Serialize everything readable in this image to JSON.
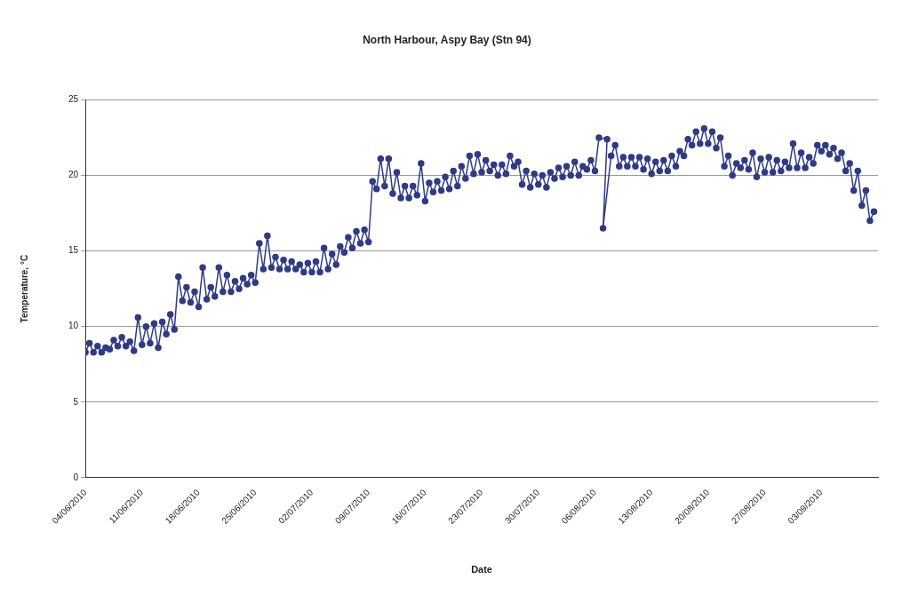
{
  "chart_data": {
    "type": "line",
    "title": "North Harbour, Aspy Bay (Stn 94)",
    "xlabel": "Date",
    "ylabel": "Temperature, °C",
    "xlim": [
      "2010-06-04",
      "2010-09-10"
    ],
    "xticks": [
      {
        "value": "2010-06-04",
        "label": "04/06/2010"
      },
      {
        "value": "2010-06-11",
        "label": "11/06/2010"
      },
      {
        "value": "2010-06-18",
        "label": "18/06/2010"
      },
      {
        "value": "2010-06-25",
        "label": "25/06/2010"
      },
      {
        "value": "2010-07-02",
        "label": "02/07/2010"
      },
      {
        "value": "2010-07-09",
        "label": "09/07/2010"
      },
      {
        "value": "2010-07-16",
        "label": "16/07/2010"
      },
      {
        "value": "2010-07-23",
        "label": "23/07/2010"
      },
      {
        "value": "2010-07-30",
        "label": "30/07/2010"
      },
      {
        "value": "2010-08-06",
        "label": "06/08/2010"
      },
      {
        "value": "2010-08-13",
        "label": "13/08/2010"
      },
      {
        "value": "2010-08-20",
        "label": "20/08/2010"
      },
      {
        "value": "2010-08-27",
        "label": "27/08/2010"
      },
      {
        "value": "2010-09-03",
        "label": "03/09/2010"
      }
    ],
    "ylim": [
      0,
      25
    ],
    "yticks": [
      0,
      5,
      10,
      15,
      20,
      25
    ],
    "grid": "y",
    "legend": false,
    "marker": "circle",
    "line_style": "solid",
    "series": [
      {
        "color": "#2e3a8c",
        "x": [
          "2010-06-04T00:00",
          "2010-06-04T12:00",
          "2010-06-05T00:00",
          "2010-06-05T12:00",
          "2010-06-06T00:00",
          "2010-06-06T12:00",
          "2010-06-07T00:00",
          "2010-06-07T12:00",
          "2010-06-08T00:00",
          "2010-06-08T12:00",
          "2010-06-09T00:00",
          "2010-06-09T12:00",
          "2010-06-10T00:00",
          "2010-06-10T12:00",
          "2010-06-11T00:00",
          "2010-06-11T12:00",
          "2010-06-12T00:00",
          "2010-06-12T12:00",
          "2010-06-13T00:00",
          "2010-06-13T12:00",
          "2010-06-14T00:00",
          "2010-06-14T12:00",
          "2010-06-15T00:00",
          "2010-06-15T12:00",
          "2010-06-16T00:00",
          "2010-06-16T12:00",
          "2010-06-17T00:00",
          "2010-06-17T12:00",
          "2010-06-18T00:00",
          "2010-06-18T12:00",
          "2010-06-19T00:00",
          "2010-06-19T12:00",
          "2010-06-20T00:00",
          "2010-06-20T12:00",
          "2010-06-21T00:00",
          "2010-06-21T12:00",
          "2010-06-22T00:00",
          "2010-06-22T12:00",
          "2010-06-23T00:00",
          "2010-06-23T12:00",
          "2010-06-24T00:00",
          "2010-06-24T12:00",
          "2010-06-25T00:00",
          "2010-06-25T12:00",
          "2010-06-26T00:00",
          "2010-06-26T12:00",
          "2010-06-27T00:00",
          "2010-06-27T12:00",
          "2010-06-28T00:00",
          "2010-06-28T12:00",
          "2010-06-29T00:00",
          "2010-06-29T12:00",
          "2010-06-30T00:00",
          "2010-06-30T12:00",
          "2010-07-01T00:00",
          "2010-07-01T12:00",
          "2010-07-02T00:00",
          "2010-07-02T12:00",
          "2010-07-03T00:00",
          "2010-07-03T12:00",
          "2010-07-04T00:00",
          "2010-07-04T12:00",
          "2010-07-05T00:00",
          "2010-07-05T12:00",
          "2010-07-06T00:00",
          "2010-07-06T12:00",
          "2010-07-07T00:00",
          "2010-07-07T12:00",
          "2010-07-08T00:00",
          "2010-07-08T12:00",
          "2010-07-09T00:00",
          "2010-07-09T12:00",
          "2010-07-10T00:00",
          "2010-07-10T12:00",
          "2010-07-11T00:00",
          "2010-07-11T12:00",
          "2010-07-12T00:00",
          "2010-07-12T12:00",
          "2010-07-13T00:00",
          "2010-07-13T12:00",
          "2010-07-14T00:00",
          "2010-07-14T12:00",
          "2010-07-15T00:00",
          "2010-07-15T12:00",
          "2010-07-16T00:00",
          "2010-07-16T12:00",
          "2010-07-17T00:00",
          "2010-07-17T12:00",
          "2010-07-18T00:00",
          "2010-07-18T12:00",
          "2010-07-19T00:00",
          "2010-07-19T12:00",
          "2010-07-20T00:00",
          "2010-07-20T12:00",
          "2010-07-21T00:00",
          "2010-07-21T12:00",
          "2010-07-22T00:00",
          "2010-07-22T12:00",
          "2010-07-23T00:00",
          "2010-07-23T12:00",
          "2010-07-24T00:00",
          "2010-07-24T12:00",
          "2010-07-25T00:00",
          "2010-07-25T12:00",
          "2010-07-26T00:00",
          "2010-07-26T12:00",
          "2010-07-27T00:00",
          "2010-07-27T12:00",
          "2010-07-28T00:00",
          "2010-07-28T12:00",
          "2010-07-29T00:00",
          "2010-07-29T12:00",
          "2010-07-30T00:00",
          "2010-07-30T12:00",
          "2010-07-31T00:00",
          "2010-07-31T12:00",
          "2010-08-01T00:00",
          "2010-08-01T12:00",
          "2010-08-02T00:00",
          "2010-08-02T12:00",
          "2010-08-03T00:00",
          "2010-08-03T12:00",
          "2010-08-04T00:00",
          "2010-08-04T12:00",
          "2010-08-05T00:00",
          "2010-08-05T12:00",
          "2010-08-06T00:00",
          "2010-08-06T12:00",
          "2010-08-07T12:00",
          "2010-08-07T00:00",
          "2010-08-08T00:00",
          "2010-08-08T12:00",
          "2010-08-09T00:00",
          "2010-08-09T12:00",
          "2010-08-10T00:00",
          "2010-08-10T12:00",
          "2010-08-11T00:00",
          "2010-08-11T12:00",
          "2010-08-12T00:00",
          "2010-08-12T12:00",
          "2010-08-13T00:00",
          "2010-08-13T12:00",
          "2010-08-14T00:00",
          "2010-08-14T12:00",
          "2010-08-15T00:00",
          "2010-08-15T12:00",
          "2010-08-16T00:00",
          "2010-08-16T12:00",
          "2010-08-17T00:00",
          "2010-08-17T12:00",
          "2010-08-18T00:00",
          "2010-08-18T12:00",
          "2010-08-19T00:00",
          "2010-08-19T12:00",
          "2010-08-20T00:00",
          "2010-08-20T12:00",
          "2010-08-21T00:00",
          "2010-08-21T12:00",
          "2010-08-22T00:00",
          "2010-08-22T12:00",
          "2010-08-23T00:00",
          "2010-08-23T12:00",
          "2010-08-24T00:00",
          "2010-08-24T12:00",
          "2010-08-25T00:00",
          "2010-08-25T12:00",
          "2010-08-26T00:00",
          "2010-08-26T12:00",
          "2010-08-27T00:00",
          "2010-08-27T12:00",
          "2010-08-28T00:00",
          "2010-08-28T12:00",
          "2010-08-29T00:00",
          "2010-08-29T12:00",
          "2010-08-30T00:00",
          "2010-08-30T12:00",
          "2010-08-31T00:00",
          "2010-08-31T12:00",
          "2010-09-01T00:00",
          "2010-09-01T12:00",
          "2010-09-02T00:00",
          "2010-09-02T12:00",
          "2010-09-03T00:00",
          "2010-09-03T12:00",
          "2010-09-04T00:00",
          "2010-09-04T12:00",
          "2010-09-05T00:00",
          "2010-09-05T12:00",
          "2010-09-06T00:00",
          "2010-09-06T12:00",
          "2010-09-07T00:00",
          "2010-09-07T12:00",
          "2010-09-08T00:00",
          "2010-09-08T12:00",
          "2010-09-09T00:00",
          "2010-09-09T12:00"
        ],
        "values": [
          8.3,
          8.9,
          8.3,
          8.7,
          8.3,
          8.6,
          8.5,
          9.1,
          8.7,
          9.3,
          8.7,
          9.0,
          8.4,
          10.6,
          8.8,
          10.0,
          8.9,
          10.2,
          8.6,
          10.3,
          9.5,
          10.8,
          9.8,
          13.3,
          11.7,
          12.6,
          11.6,
          12.3,
          11.3,
          13.9,
          11.8,
          12.6,
          12.0,
          13.9,
          12.3,
          13.4,
          12.3,
          13.0,
          12.5,
          13.2,
          12.8,
          13.4,
          12.9,
          15.5,
          13.8,
          16.0,
          13.9,
          14.6,
          13.8,
          14.4,
          13.8,
          14.3,
          13.8,
          14.1,
          13.6,
          14.2,
          13.6,
          14.3,
          13.6,
          15.2,
          13.8,
          14.8,
          14.1,
          15.3,
          14.9,
          15.9,
          15.2,
          16.3,
          15.5,
          16.4,
          15.6,
          19.6,
          19.1,
          21.1,
          19.3,
          21.1,
          18.8,
          20.2,
          18.5,
          19.3,
          18.5,
          19.3,
          18.7,
          20.8,
          18.3,
          19.5,
          18.9,
          19.6,
          19.0,
          19.9,
          19.1,
          20.3,
          19.3,
          20.6,
          19.8,
          21.3,
          20.1,
          21.4,
          20.2,
          21.0,
          20.3,
          20.7,
          20.0,
          20.7,
          20.1,
          21.3,
          20.6,
          20.9,
          19.4,
          20.3,
          19.2,
          20.1,
          19.4,
          20.0,
          19.2,
          20.2,
          19.8,
          20.5,
          19.9,
          20.6,
          20.0,
          20.9,
          20.0,
          20.6,
          20.4,
          21.0,
          20.3,
          22.5,
          22.4,
          16.5,
          21.3,
          22.0,
          20.6,
          21.2,
          20.6,
          21.2,
          20.6,
          21.2,
          20.4,
          21.1,
          20.1,
          20.9,
          20.3,
          21.0,
          20.3,
          21.3,
          20.6,
          21.6,
          21.3,
          22.4,
          22.0,
          22.9,
          22.1,
          23.1,
          22.1,
          22.9,
          21.8,
          22.5,
          20.6,
          21.3,
          20.0,
          20.8,
          20.5,
          21.0,
          20.4,
          21.5,
          19.9,
          21.1,
          20.2,
          21.2,
          20.2,
          21.0,
          20.3,
          20.9,
          20.5,
          22.1,
          20.5,
          21.5,
          20.5,
          21.2,
          20.8,
          22.0,
          21.6,
          22.0,
          21.4,
          21.8,
          21.1,
          21.5,
          20.3,
          20.8,
          19.0,
          20.3,
          18.0,
          19.0,
          17.0,
          17.6
        ]
      }
    ]
  }
}
